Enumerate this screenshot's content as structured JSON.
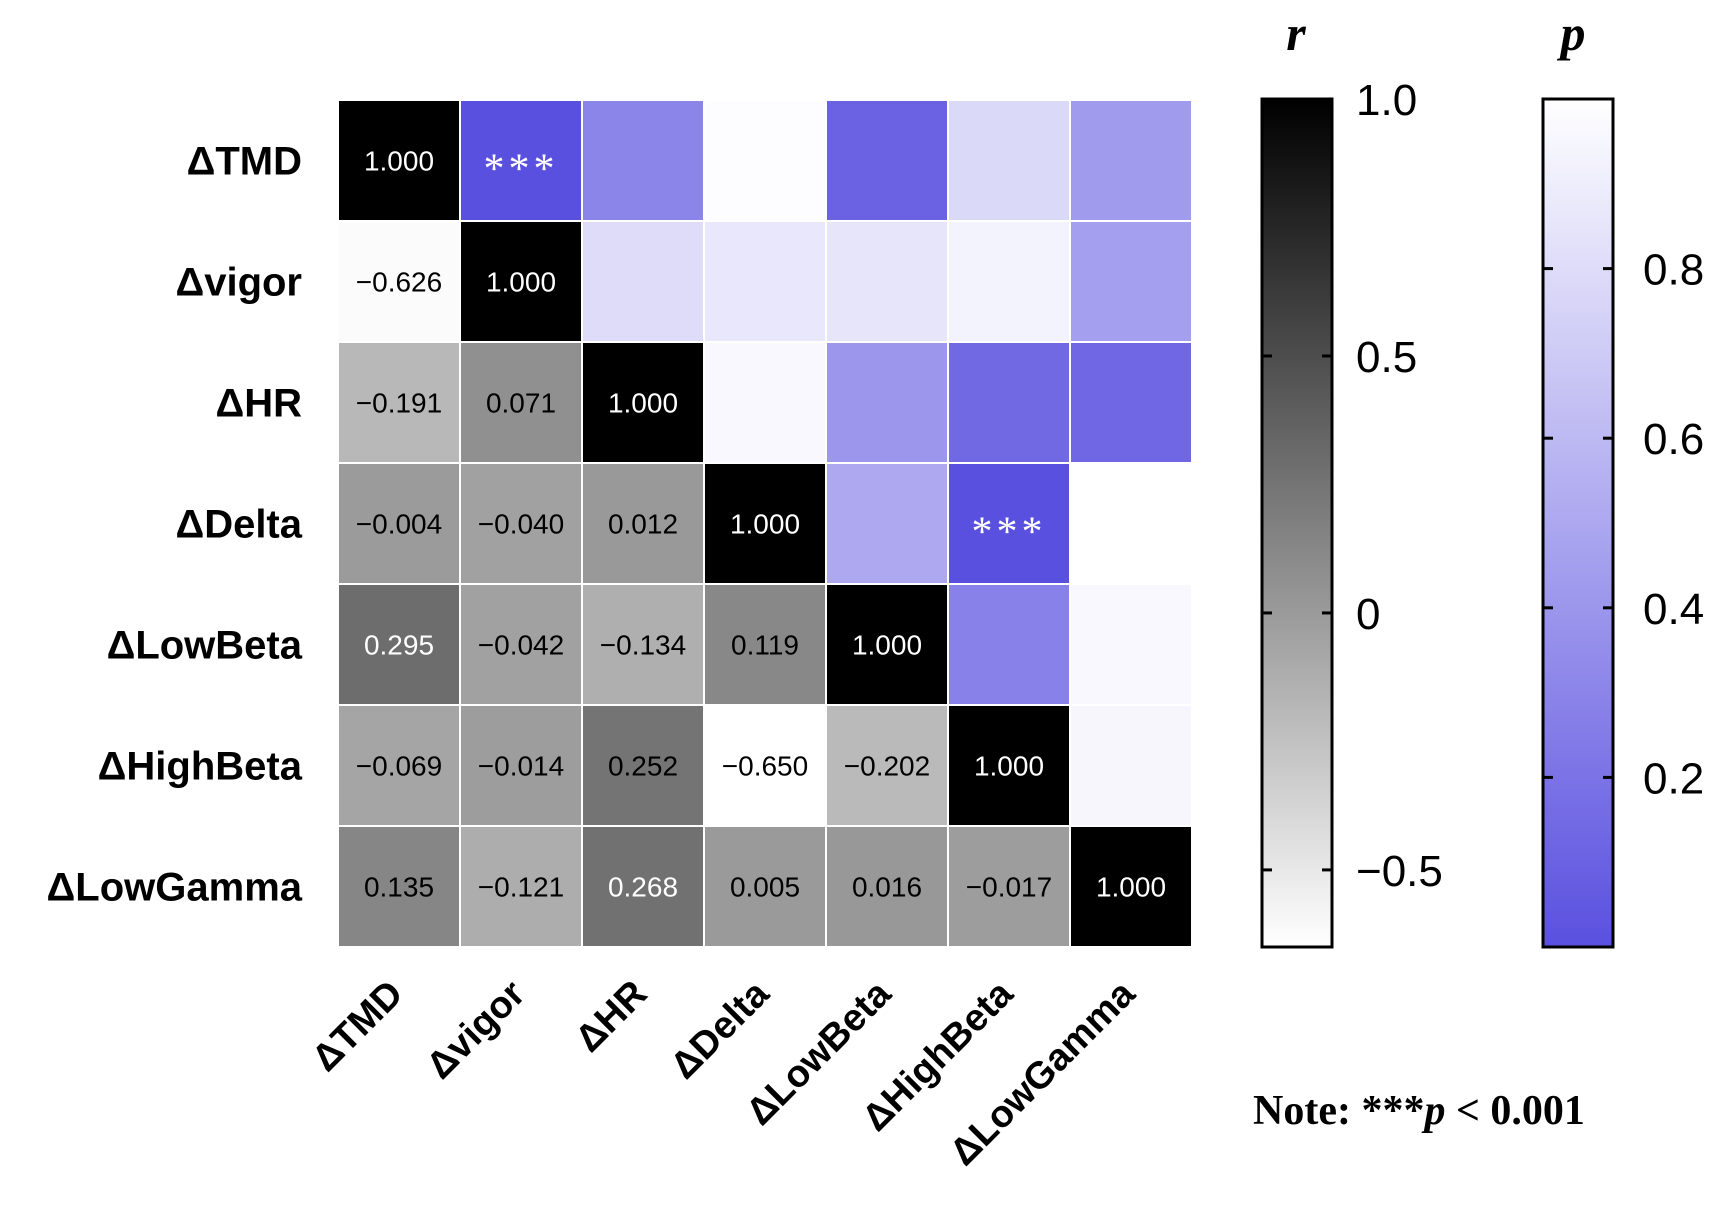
{
  "chart_data": {
    "type": "heatmap",
    "variables": [
      "ΔTMD",
      "Δvigor",
      "ΔHR",
      "ΔDelta",
      "ΔLowBeta",
      "ΔHighBeta",
      "ΔLowGamma"
    ],
    "r_lower_triangle": [
      [
        1.0
      ],
      [
        -0.626,
        1.0
      ],
      [
        -0.191,
        0.071,
        1.0
      ],
      [
        -0.004,
        -0.04,
        0.012,
        1.0
      ],
      [
        0.295,
        -0.042,
        -0.134,
        0.119,
        1.0
      ],
      [
        -0.069,
        -0.014,
        0.252,
        -0.65,
        -0.202,
        1.0
      ],
      [
        0.135,
        -0.121,
        0.268,
        0.005,
        0.016,
        -0.017,
        1.0
      ]
    ],
    "r_labels_lower_triangle": [
      [
        "1.000"
      ],
      [
        "−0.626",
        "1.000"
      ],
      [
        "−0.191",
        "0.071",
        "1.000"
      ],
      [
        "−0.004",
        "−0.040",
        "0.012",
        "1.000"
      ],
      [
        "0.295",
        "−0.042",
        "−0.134",
        "0.119",
        "1.000"
      ],
      [
        "−0.069",
        "−0.014",
        "0.252",
        "−0.650",
        "−0.202",
        "1.000"
      ],
      [
        "0.135",
        "−0.121",
        "0.268",
        "0.005",
        "0.016",
        "−0.017",
        "1.000"
      ]
    ],
    "p_upper_triangle": [
      {
        "row": 0,
        "col": 1,
        "p": 0.0001,
        "label": "***"
      },
      {
        "row": 0,
        "col": 2,
        "p": 0.3
      },
      {
        "row": 0,
        "col": 3,
        "p": 0.99
      },
      {
        "row": 0,
        "col": 4,
        "p": 0.1
      },
      {
        "row": 0,
        "col": 5,
        "p": 0.78
      },
      {
        "row": 0,
        "col": 6,
        "p": 0.43
      },
      {
        "row": 1,
        "col": 2,
        "p": 0.8
      },
      {
        "row": 1,
        "col": 3,
        "p": 0.86
      },
      {
        "row": 1,
        "col": 4,
        "p": 0.85
      },
      {
        "row": 1,
        "col": 5,
        "p": 0.93
      },
      {
        "row": 1,
        "col": 6,
        "p": 0.45
      },
      {
        "row": 2,
        "col": 3,
        "p": 0.96
      },
      {
        "row": 2,
        "col": 4,
        "p": 0.4
      },
      {
        "row": 2,
        "col": 5,
        "p": 0.14
      },
      {
        "row": 2,
        "col": 6,
        "p": 0.13
      },
      {
        "row": 3,
        "col": 4,
        "p": 0.5
      },
      {
        "row": 3,
        "col": 5,
        "p": 0.0001,
        "label": "***"
      },
      {
        "row": 3,
        "col": 6,
        "p": 1.0
      },
      {
        "row": 4,
        "col": 5,
        "p": 0.28
      },
      {
        "row": 4,
        "col": 6,
        "p": 0.96
      },
      {
        "row": 5,
        "col": 6,
        "p": 0.95
      }
    ],
    "colorbar_r": {
      "title": "r",
      "range": [
        -0.65,
        1.0
      ],
      "ticks": [
        1.0,
        0.5,
        0,
        -0.5
      ],
      "tick_labels": [
        "1.0",
        "0.5",
        "0",
        "−0.5"
      ],
      "colors": [
        "#ffffff",
        "#000000"
      ]
    },
    "colorbar_p": {
      "title": "p",
      "range": [
        0.0,
        1.0
      ],
      "ticks": [
        0.8,
        0.6,
        0.4,
        0.2
      ],
      "tick_labels": [
        "0.8",
        "0.6",
        "0.4",
        "0.2"
      ],
      "colors": [
        "#5a50e0",
        "#ffffff"
      ]
    }
  },
  "note": {
    "prefix": "Note: ***",
    "p": "p",
    "suffix": " < 0.001"
  }
}
